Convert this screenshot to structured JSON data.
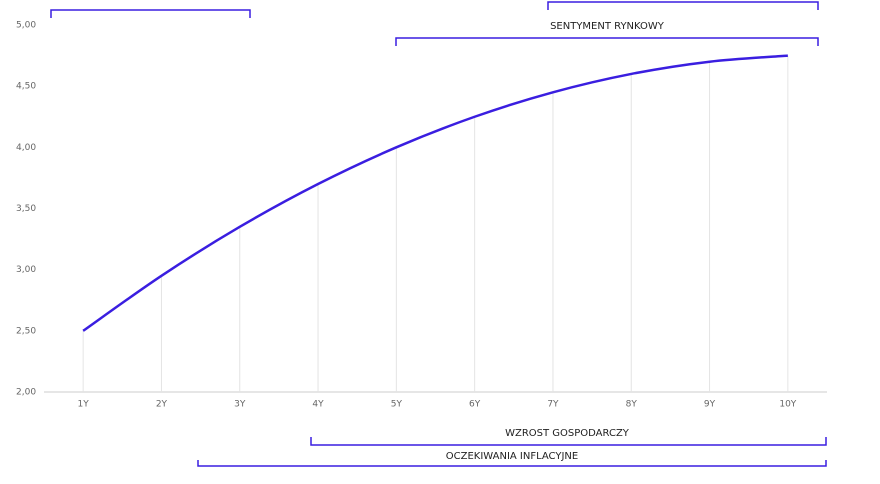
{
  "chart_data": {
    "type": "line",
    "categories": [
      "1Y",
      "2Y",
      "3Y",
      "4Y",
      "5Y",
      "6Y",
      "7Y",
      "8Y",
      "9Y",
      "10Y"
    ],
    "series": [
      {
        "color": "#3a1ee0",
        "values": [
          2.5,
          2.95,
          3.35,
          3.7,
          4.0,
          4.25,
          4.45,
          4.6,
          4.7,
          4.75
        ]
      }
    ],
    "ylim": [
      2,
      5
    ],
    "yticks": [
      {
        "value": 2,
        "label": "2,00"
      },
      {
        "value": 2.5,
        "label": "2,50"
      },
      {
        "value": 3,
        "label": "3,00"
      },
      {
        "value": 3.5,
        "label": "3,50"
      },
      {
        "value": 4,
        "label": "4,00"
      },
      {
        "value": 4.5,
        "label": "4,50"
      },
      {
        "value": 5,
        "label": "5,00"
      }
    ],
    "annotations": [
      "SENTYMENT RYNKOWY",
      "WZROST GOSPODARCZY",
      "OCZEKIWANIA INFLACYJNE"
    ]
  }
}
